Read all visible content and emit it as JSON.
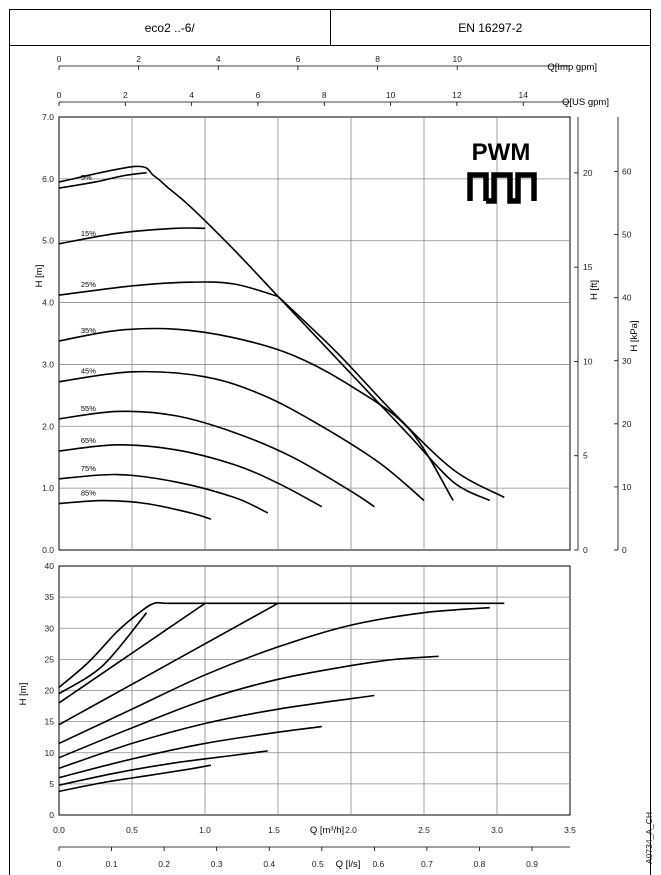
{
  "header": {
    "model": "eco2 ..-6/",
    "standard": "EN 16297-2"
  },
  "logo": {
    "text": "PWM"
  },
  "figure_id": "A0734_A_CH",
  "chart_data": [
    {
      "type": "line",
      "title": "",
      "xlabel": "Q [m³/h]",
      "ylabel": "H [m]",
      "xlim": [
        0,
        3.5
      ],
      "ylim": [
        0,
        7.0
      ],
      "y_ticks": [
        "0.0",
        "1.0",
        "2.0",
        "3.0",
        "4.0",
        "5.0",
        "6.0",
        "7.0"
      ],
      "secondary_axes": {
        "top_imp_label": "Q[Imp gpm]",
        "top_imp_ticks": [
          "0",
          "2",
          "4",
          "6",
          "8",
          "10"
        ],
        "top_us_label": "Q[US gpm]",
        "top_us_ticks": [
          "0",
          "2",
          "4",
          "6",
          "8",
          "10",
          "12",
          "14"
        ],
        "right_ft_label": "H [ft]",
        "right_ft_ticks": [
          "0",
          "5",
          "10",
          "15",
          "20"
        ],
        "right_kpa_label": "H [kPa]",
        "right_kpa_ticks": [
          "0",
          "10",
          "20",
          "30",
          "40",
          "50",
          "60"
        ]
      },
      "grid": true,
      "series": [
        {
          "name": "5%",
          "x": [
            0,
            0.25,
            0.44,
            0.6
          ],
          "y": [
            5.85,
            5.95,
            6.05,
            6.1
          ]
        },
        {
          "name": "15%",
          "x": [
            0,
            0.4,
            0.8,
            1.0
          ],
          "y": [
            4.95,
            5.12,
            5.2,
            5.2
          ]
        },
        {
          "name": "25%",
          "x": [
            0,
            0.5,
            0.9,
            1.2,
            1.5
          ],
          "y": [
            4.12,
            4.27,
            4.33,
            4.3,
            4.1
          ]
        },
        {
          "name": "35%",
          "x": [
            0,
            0.4,
            0.8,
            1.2,
            1.6,
            2.0,
            2.4,
            2.7
          ],
          "y": [
            3.38,
            3.55,
            3.57,
            3.43,
            3.15,
            2.65,
            1.95,
            0.8
          ]
        },
        {
          "name": "45%",
          "x": [
            0,
            0.5,
            1.0,
            1.4,
            1.8,
            2.2,
            2.5
          ],
          "y": [
            2.72,
            2.88,
            2.8,
            2.5,
            2.0,
            1.4,
            0.8
          ]
        },
        {
          "name": "55%",
          "x": [
            0,
            0.4,
            0.8,
            1.2,
            1.6,
            2.0,
            2.16
          ],
          "y": [
            2.12,
            2.24,
            2.17,
            1.9,
            1.5,
            0.95,
            0.7
          ]
        },
        {
          "name": "65%",
          "x": [
            0,
            0.4,
            0.8,
            1.2,
            1.5,
            1.8
          ],
          "y": [
            1.6,
            1.7,
            1.62,
            1.38,
            1.08,
            0.7
          ]
        },
        {
          "name": "75%",
          "x": [
            0,
            0.4,
            0.8,
            1.2,
            1.43
          ],
          "y": [
            1.15,
            1.22,
            1.1,
            0.85,
            0.6
          ]
        },
        {
          "name": "85%",
          "x": [
            0,
            0.3,
            0.6,
            0.9,
            1.04
          ],
          "y": [
            0.75,
            0.8,
            0.75,
            0.6,
            0.5
          ]
        },
        {
          "name": "",
          "x": [
            0,
            0.52,
            0.65,
            0.75,
            0.9,
            1.2,
            1.5,
            1.8,
            2.1,
            2.4,
            2.7,
            2.95
          ],
          "y": [
            5.95,
            6.2,
            6.05,
            5.85,
            5.55,
            4.85,
            4.1,
            3.35,
            2.6,
            1.85,
            1.1,
            0.8
          ]
        },
        {
          "name": "",
          "x": [
            1.5,
            1.9,
            2.3,
            2.7,
            3.05
          ],
          "y": [
            4.1,
            3.2,
            2.2,
            1.3,
            0.85
          ]
        }
      ]
    },
    {
      "type": "line",
      "title": "",
      "xlabel": "Q [m³/h]",
      "ylabel": "H [m]",
      "xlim": [
        0,
        3.5
      ],
      "ylim": [
        0,
        40
      ],
      "x_ticks": [
        "0.0",
        "0.5",
        "1.0",
        "1.5",
        "2.0",
        "2.5",
        "3.0",
        "3.5"
      ],
      "y_ticks": [
        "0",
        "5",
        "10",
        "15",
        "20",
        "25",
        "30",
        "35",
        "40"
      ],
      "secondary_axes": {
        "bottom_ls_label": "Q [l/s]",
        "bottom_ls_ticks": [
          "0",
          "0.1",
          "0.2",
          "0.3",
          "0.4",
          "0.5",
          "0.6",
          "0.7",
          "0.8",
          "0.9"
        ]
      },
      "grid": true,
      "series": [
        {
          "name": "",
          "x": [
            0,
            0.2,
            0.4,
            0.55,
            0.65,
            0.75,
            1.0,
            1.5,
            2.0,
            2.5,
            3.05
          ],
          "y": [
            20.5,
            24.5,
            29.5,
            32.5,
            34,
            34,
            34,
            34,
            34,
            34,
            34
          ]
        },
        {
          "name": "",
          "x": [
            0,
            0.3,
            0.6
          ],
          "y": [
            19.5,
            24,
            32.5
          ]
        },
        {
          "name": "",
          "x": [
            0,
            0.5,
            1.0
          ],
          "y": [
            18,
            26,
            34
          ]
        },
        {
          "name": "",
          "x": [
            0,
            0.5,
            1.0,
            1.5
          ],
          "y": [
            14.5,
            21,
            27.5,
            34
          ]
        },
        {
          "name": "",
          "x": [
            0,
            0.5,
            1.0,
            1.5,
            2.0,
            2.5,
            2.95
          ],
          "y": [
            11.5,
            17,
            22.5,
            27,
            30.5,
            32.5,
            33.3
          ]
        },
        {
          "name": "",
          "x": [
            0,
            0.5,
            1.0,
            1.5,
            2.0,
            2.3,
            2.6
          ],
          "y": [
            9.2,
            14,
            18.5,
            21.8,
            24,
            25,
            25.5
          ]
        },
        {
          "name": "",
          "x": [
            0,
            0.5,
            1.0,
            1.5,
            2.16
          ],
          "y": [
            7.5,
            11.5,
            14.7,
            17,
            19.2
          ]
        },
        {
          "name": "",
          "x": [
            0,
            0.5,
            1.0,
            1.5,
            1.8
          ],
          "y": [
            6,
            9,
            11.5,
            13.3,
            14.2
          ]
        },
        {
          "name": "",
          "x": [
            0,
            0.4,
            0.8,
            1.2,
            1.43
          ],
          "y": [
            4.8,
            6.8,
            8.4,
            9.6,
            10.3
          ]
        },
        {
          "name": "",
          "x": [
            0,
            0.3,
            0.6,
            0.9,
            1.04
          ],
          "y": [
            3.8,
            5.2,
            6.3,
            7.4,
            8
          ]
        }
      ]
    }
  ]
}
